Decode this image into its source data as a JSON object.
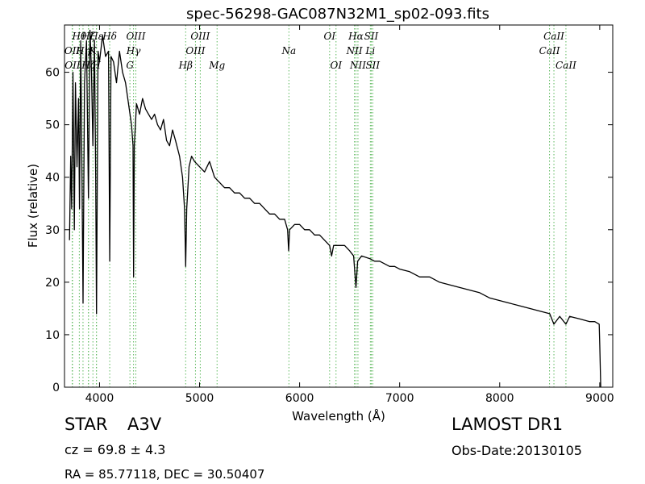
{
  "chart_data": {
    "type": "line",
    "title": "spec-56298-GAC087N32M1_sp02-093.fits",
    "xlabel": "Wavelength (Å)",
    "ylabel": "Flux (relative)",
    "xlim": [
      3650,
      9130
    ],
    "ylim": [
      0,
      69
    ],
    "xticks": [
      4000,
      5000,
      6000,
      7000,
      8000,
      9000
    ],
    "yticks": [
      0,
      10,
      20,
      30,
      40,
      50,
      60
    ],
    "grid": false,
    "series": [
      {
        "points": [
          [
            3700,
            28
          ],
          [
            3712,
            44
          ],
          [
            3722,
            34
          ],
          [
            3735,
            60
          ],
          [
            3748,
            30
          ],
          [
            3760,
            58
          ],
          [
            3775,
            42
          ],
          [
            3790,
            55
          ],
          [
            3800,
            34
          ],
          [
            3812,
            66
          ],
          [
            3825,
            40
          ],
          [
            3835,
            16
          ],
          [
            3850,
            58
          ],
          [
            3870,
            66
          ],
          [
            3889,
            36
          ],
          [
            3905,
            68
          ],
          [
            3920,
            60
          ],
          [
            3934,
            46
          ],
          [
            3950,
            66
          ],
          [
            3962,
            40
          ],
          [
            3970,
            14
          ],
          [
            3985,
            64
          ],
          [
            4000,
            62
          ],
          [
            4030,
            67
          ],
          [
            4060,
            63
          ],
          [
            4090,
            64
          ],
          [
            4102,
            24
          ],
          [
            4115,
            63
          ],
          [
            4140,
            62
          ],
          [
            4170,
            58
          ],
          [
            4200,
            64
          ],
          [
            4230,
            60
          ],
          [
            4260,
            58
          ],
          [
            4290,
            54
          ],
          [
            4320,
            50
          ],
          [
            4335,
            46
          ],
          [
            4341,
            21
          ],
          [
            4348,
            46
          ],
          [
            4370,
            54
          ],
          [
            4400,
            52
          ],
          [
            4430,
            55
          ],
          [
            4460,
            53
          ],
          [
            4490,
            52
          ],
          [
            4520,
            51
          ],
          [
            4550,
            52
          ],
          [
            4580,
            50
          ],
          [
            4610,
            49
          ],
          [
            4640,
            51
          ],
          [
            4670,
            47
          ],
          [
            4700,
            46
          ],
          [
            4730,
            49
          ],
          [
            4760,
            47
          ],
          [
            4800,
            44
          ],
          [
            4830,
            40
          ],
          [
            4850,
            34
          ],
          [
            4861,
            23
          ],
          [
            4872,
            34
          ],
          [
            4895,
            42
          ],
          [
            4920,
            44
          ],
          [
            4950,
            43
          ],
          [
            5000,
            42
          ],
          [
            5050,
            41
          ],
          [
            5100,
            43
          ],
          [
            5150,
            40
          ],
          [
            5200,
            39
          ],
          [
            5250,
            38
          ],
          [
            5300,
            38
          ],
          [
            5350,
            37
          ],
          [
            5400,
            37
          ],
          [
            5450,
            36
          ],
          [
            5500,
            36
          ],
          [
            5550,
            35
          ],
          [
            5600,
            35
          ],
          [
            5650,
            34
          ],
          [
            5700,
            33
          ],
          [
            5750,
            33
          ],
          [
            5800,
            32
          ],
          [
            5850,
            32
          ],
          [
            5880,
            30
          ],
          [
            5890,
            26
          ],
          [
            5900,
            30
          ],
          [
            5950,
            31
          ],
          [
            6000,
            31
          ],
          [
            6050,
            30
          ],
          [
            6100,
            30
          ],
          [
            6150,
            29
          ],
          [
            6200,
            29
          ],
          [
            6250,
            28
          ],
          [
            6300,
            27
          ],
          [
            6320,
            25
          ],
          [
            6340,
            27
          ],
          [
            6400,
            27
          ],
          [
            6450,
            27
          ],
          [
            6500,
            26
          ],
          [
            6540,
            25
          ],
          [
            6563,
            19
          ],
          [
            6580,
            24
          ],
          [
            6620,
            25
          ],
          [
            6700,
            24.5
          ],
          [
            6750,
            24
          ],
          [
            6800,
            24
          ],
          [
            6850,
            23.5
          ],
          [
            6900,
            23
          ],
          [
            6950,
            23
          ],
          [
            7000,
            22.5
          ],
          [
            7100,
            22
          ],
          [
            7200,
            21
          ],
          [
            7300,
            21
          ],
          [
            7400,
            20
          ],
          [
            7500,
            19.5
          ],
          [
            7600,
            19
          ],
          [
            7700,
            18.5
          ],
          [
            7800,
            18
          ],
          [
            7900,
            17
          ],
          [
            8000,
            16.5
          ],
          [
            8100,
            16
          ],
          [
            8200,
            15.5
          ],
          [
            8300,
            15
          ],
          [
            8400,
            14.5
          ],
          [
            8500,
            14
          ],
          [
            8542,
            12
          ],
          [
            8600,
            13.5
          ],
          [
            8662,
            12
          ],
          [
            8700,
            13.5
          ],
          [
            8800,
            13
          ],
          [
            8900,
            12.5
          ],
          [
            8950,
            12.5
          ],
          [
            8995,
            12
          ],
          [
            9000,
            8
          ],
          [
            9010,
            0
          ]
        ]
      }
    ],
    "line_markers": [
      {
        "label": "OII",
        "x": 3727,
        "row": 1
      },
      {
        "label": "OII",
        "x": 3730,
        "row": 2
      },
      {
        "label": "Hθ",
        "x": 3798,
        "row": 0
      },
      {
        "label": "Hη",
        "x": 3835,
        "row": 1
      },
      {
        "label": "Hζ",
        "x": 3889,
        "row": 0
      },
      {
        "label": "Hζ",
        "x": 3890,
        "row": 2
      },
      {
        "label": "K",
        "x": 3934,
        "row": 1
      },
      {
        "label": "H",
        "x": 3969,
        "row": 2
      },
      {
        "label": "Hε",
        "x": 3970,
        "row": 0
      },
      {
        "label": "Hδ",
        "x": 4102,
        "row": 0
      },
      {
        "label": "G",
        "x": 4304,
        "row": 2
      },
      {
        "label": "Hγ",
        "x": 4340,
        "row": 1
      },
      {
        "label": "OIII",
        "x": 4363,
        "row": 0
      },
      {
        "label": "Hβ",
        "x": 4861,
        "row": 2
      },
      {
        "label": "OIII",
        "x": 4959,
        "row": 1
      },
      {
        "label": "OIII",
        "x": 5007,
        "row": 0
      },
      {
        "label": "Mg",
        "x": 5175,
        "row": 2
      },
      {
        "label": "Na",
        "x": 5893,
        "row": 1
      },
      {
        "label": "OI",
        "x": 6300,
        "row": 0
      },
      {
        "label": "OI",
        "x": 6364,
        "row": 2
      },
      {
        "label": "NII",
        "x": 6548,
        "row": 1
      },
      {
        "label": "Hα",
        "x": 6563,
        "row": 0
      },
      {
        "label": "NII",
        "x": 6583,
        "row": 2
      },
      {
        "label": "Li",
        "x": 6707,
        "row": 1
      },
      {
        "label": "SII",
        "x": 6716,
        "row": 0
      },
      {
        "label": "SII",
        "x": 6731,
        "row": 2
      },
      {
        "label": "CaII",
        "x": 8498,
        "row": 1
      },
      {
        "label": "CaII",
        "x": 8542,
        "row": 0
      },
      {
        "label": "CaII",
        "x": 8662,
        "row": 2
      }
    ]
  },
  "info": {
    "object_class": "STAR",
    "subclass": "A3V",
    "redshift": "cz = 69.8 ± 4.3",
    "coords": "RA = 85.77118, DEC = 30.50407",
    "survey": "LAMOST DR1",
    "obs_date": "Obs-Date:20130105"
  }
}
